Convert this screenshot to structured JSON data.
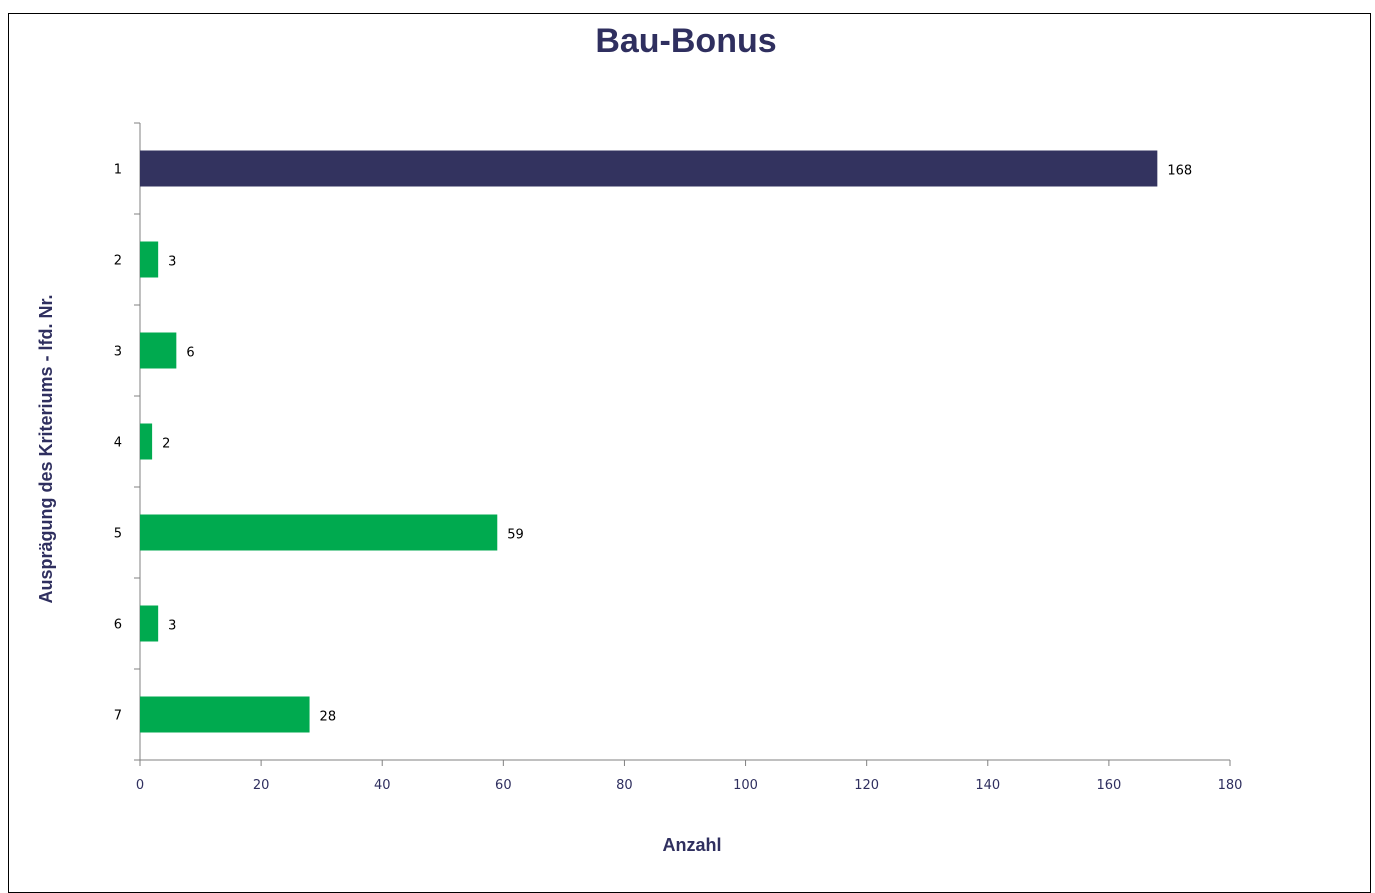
{
  "chart_data": {
    "type": "bar",
    "orientation": "horizontal",
    "title": "Bau-Bonus",
    "xlabel": "Anzahl",
    "ylabel": "Ausprägung des Kriteriums - lfd. Nr.",
    "categories": [
      "1",
      "2",
      "3",
      "4",
      "5",
      "6",
      "7"
    ],
    "values": [
      168,
      3,
      6,
      2,
      59,
      3,
      28
    ],
    "xlim": [
      0,
      180
    ],
    "xticks": [
      0,
      20,
      40,
      60,
      80,
      100,
      120,
      140,
      160,
      180
    ],
    "grid": false,
    "legend": "none",
    "data_labels": [
      "168",
      "3",
      "6",
      "2",
      "59",
      "3",
      "28"
    ]
  },
  "colors": {
    "highlight_bar": "#33335f",
    "bar": "#00aa4f",
    "text": "#2f2f5f",
    "axis": "#808080"
  }
}
